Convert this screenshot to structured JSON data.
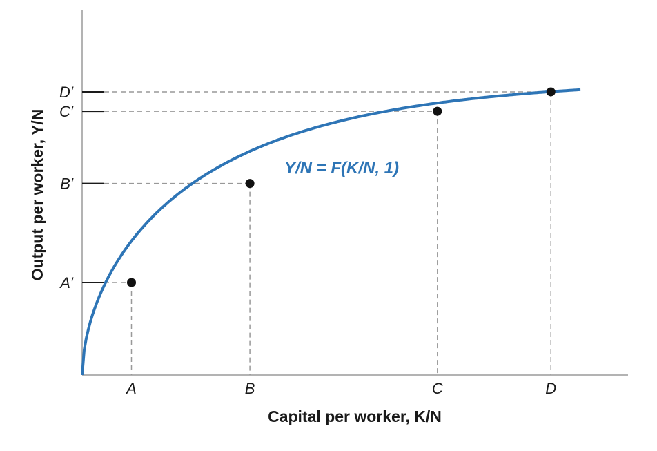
{
  "chart_data": {
    "type": "line",
    "title": "",
    "xlabel": "Capital per worker, K/N",
    "ylabel": "Output per worker, Y/N",
    "x_ticks": [
      "A",
      "B",
      "C",
      "D"
    ],
    "y_ticks": [
      "A′",
      "B′",
      "C′",
      "D′"
    ],
    "series": [
      {
        "name": "Y/N = F(K/N, 1)",
        "color": "#2e75b6",
        "points": [
          {
            "label": "A",
            "x": 1,
            "y": 1
          },
          {
            "label": "B",
            "x": 3.4,
            "y": 2.07
          },
          {
            "label": "C",
            "x": 7.2,
            "y": 2.85
          },
          {
            "label": "D",
            "x": 9.5,
            "y": 3.06
          }
        ]
      }
    ],
    "axis_color": "#999999",
    "guide_color": "#999999",
    "point_color": "#111111"
  }
}
